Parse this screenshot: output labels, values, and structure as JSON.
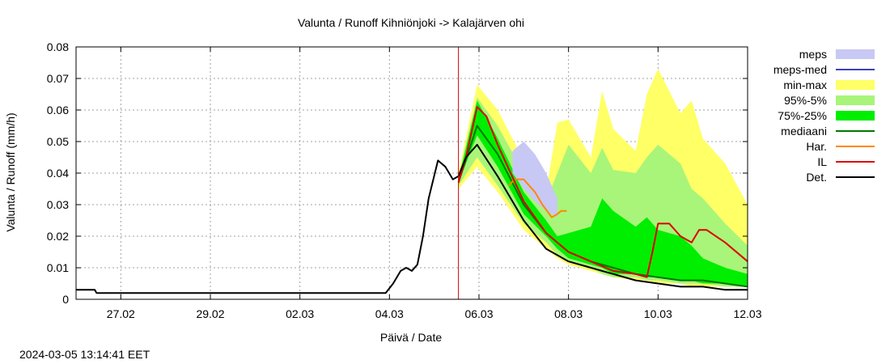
{
  "chart_data": {
    "type": "area",
    "title": "Valunta / Runoff  Kihniönjoki -> Kalajärven ohi",
    "xlabel": "Päivä / Date",
    "ylabel": "Valunta / Runoff (mm/h)",
    "ylim": [
      0,
      0.08
    ],
    "xlim": [
      "2024-02-26 00:00",
      "2024-03-12 00:00"
    ],
    "grid": true,
    "legend_position": "right",
    "yticks": [
      "0",
      "0.01",
      "0.02",
      "0.03",
      "0.04",
      "0.05",
      "0.06",
      "0.07",
      "0.08"
    ],
    "xticks": [
      {
        "label": "27.02",
        "date": "2024-02-27"
      },
      {
        "label": "29.02",
        "date": "2024-02-29"
      },
      {
        "label": "02.03",
        "date": "2024-03-02"
      },
      {
        "label": "04.03",
        "date": "2024-03-04"
      },
      {
        "label": "06.03",
        "date": "2024-03-06"
      },
      {
        "label": "08.03",
        "date": "2024-03-08"
      },
      {
        "label": "10.03",
        "date": "2024-03-10"
      },
      {
        "label": "12.03",
        "date": "2024-03-12"
      }
    ],
    "forecast_start": "2024-03-05 13:00",
    "legend": [
      {
        "label": "meps",
        "kind": "box",
        "color": "#c8c8f4"
      },
      {
        "label": "meps-med",
        "kind": "line",
        "color": "#4040c0"
      },
      {
        "label": "min-max",
        "kind": "box",
        "color": "#ffff66"
      },
      {
        "label": "95%-5%",
        "kind": "box",
        "color": "#a8f57a"
      },
      {
        "label": "75%-25%",
        "kind": "box",
        "color": "#00ee00"
      },
      {
        "label": "mediaani",
        "kind": "line",
        "color": "#007700"
      },
      {
        "label": "Har.",
        "kind": "line",
        "color": "#ff8800"
      },
      {
        "label": "IL",
        "kind": "line",
        "color": "#dd0000"
      },
      {
        "label": "Det.",
        "kind": "line",
        "color": "#000000"
      }
    ],
    "series": [
      {
        "name": "min-max",
        "kind": "band",
        "color": "#ffff66",
        "x": [
          "2024-03-05 13:00",
          "2024-03-05 23:00",
          "2024-03-06 10:00",
          "2024-03-07 00:00",
          "2024-03-07 12:00",
          "2024-03-07 18:00",
          "2024-03-08 00:00",
          "2024-03-08 12:00",
          "2024-03-08 18:00",
          "2024-03-09 00:00",
          "2024-03-09 12:00",
          "2024-03-09 18:00",
          "2024-03-10 00:00",
          "2024-03-10 12:00",
          "2024-03-10 18:00",
          "2024-03-11 00:00",
          "2024-03-11 12:00",
          "2024-03-12 00:00"
        ],
        "low": [
          0.035,
          0.042,
          0.034,
          0.022,
          0.016,
          0.013,
          0.011,
          0.009,
          0.008,
          0.007,
          0.006,
          0.006,
          0.005,
          0.005,
          0.004,
          0.004,
          0.004,
          0.004
        ],
        "high": [
          0.04,
          0.068,
          0.06,
          0.044,
          0.034,
          0.056,
          0.057,
          0.045,
          0.066,
          0.054,
          0.047,
          0.065,
          0.073,
          0.059,
          0.063,
          0.051,
          0.043,
          0.03
        ]
      },
      {
        "name": "95%-5%",
        "kind": "band",
        "color": "#a8f57a",
        "x": [
          "2024-03-05 13:00",
          "2024-03-05 23:00",
          "2024-03-06 10:00",
          "2024-03-07 00:00",
          "2024-03-07 12:00",
          "2024-03-07 18:00",
          "2024-03-08 00:00",
          "2024-03-08 12:00",
          "2024-03-08 18:00",
          "2024-03-09 00:00",
          "2024-03-09 12:00",
          "2024-03-09 18:00",
          "2024-03-10 00:00",
          "2024-03-10 12:00",
          "2024-03-10 18:00",
          "2024-03-11 00:00",
          "2024-03-11 12:00",
          "2024-03-12 00:00"
        ],
        "low": [
          0.036,
          0.045,
          0.036,
          0.024,
          0.018,
          0.014,
          0.012,
          0.01,
          0.008,
          0.007,
          0.007,
          0.006,
          0.006,
          0.005,
          0.005,
          0.005,
          0.004,
          0.004
        ],
        "high": [
          0.039,
          0.064,
          0.055,
          0.04,
          0.031,
          0.04,
          0.049,
          0.04,
          0.048,
          0.041,
          0.04,
          0.045,
          0.049,
          0.043,
          0.035,
          0.032,
          0.024,
          0.017
        ]
      },
      {
        "name": "75%-25%",
        "kind": "band",
        "color": "#00ee00",
        "x": [
          "2024-03-05 13:00",
          "2024-03-05 23:00",
          "2024-03-06 10:00",
          "2024-03-07 00:00",
          "2024-03-07 12:00",
          "2024-03-07 18:00",
          "2024-03-08 00:00",
          "2024-03-08 12:00",
          "2024-03-08 18:00",
          "2024-03-09 00:00",
          "2024-03-09 12:00",
          "2024-03-09 18:00",
          "2024-03-10 00:00",
          "2024-03-10 12:00",
          "2024-03-10 18:00",
          "2024-03-11 00:00",
          "2024-03-11 12:00",
          "2024-03-12 00:00"
        ],
        "low": [
          0.037,
          0.052,
          0.042,
          0.027,
          0.02,
          0.016,
          0.013,
          0.011,
          0.01,
          0.008,
          0.008,
          0.007,
          0.007,
          0.006,
          0.006,
          0.005,
          0.005,
          0.004
        ],
        "high": [
          0.038,
          0.063,
          0.051,
          0.034,
          0.025,
          0.02,
          0.021,
          0.023,
          0.032,
          0.028,
          0.023,
          0.026,
          0.022,
          0.02,
          0.017,
          0.013,
          0.01,
          0.008
        ]
      },
      {
        "name": "meps",
        "kind": "band",
        "color": "#c8c8f4",
        "x": [
          "2024-03-06 18:00",
          "2024-03-07 00:00",
          "2024-03-07 06:00",
          "2024-03-07 12:00",
          "2024-03-07 18:00"
        ],
        "low": [
          0.04,
          0.035,
          0.031,
          0.028,
          0.026
        ],
        "high": [
          0.047,
          0.05,
          0.046,
          0.04,
          0.032
        ]
      },
      {
        "name": "mediaani",
        "kind": "line",
        "color": "#007700",
        "x": [
          "2024-03-05 13:00",
          "2024-03-05 23:00",
          "2024-03-06 10:00",
          "2024-03-07 00:00",
          "2024-03-07 12:00",
          "2024-03-08 00:00",
          "2024-03-08 12:00",
          "2024-03-09 00:00",
          "2024-03-09 12:00",
          "2024-03-10 00:00",
          "2024-03-10 12:00",
          "2024-03-11 00:00",
          "2024-03-11 12:00",
          "2024-03-12 00:00"
        ],
        "y": [
          0.037,
          0.055,
          0.046,
          0.03,
          0.021,
          0.015,
          0.012,
          0.01,
          0.008,
          0.007,
          0.006,
          0.006,
          0.005,
          0.004
        ]
      },
      {
        "name": "Har.",
        "kind": "line",
        "color": "#ff8800",
        "x": [
          "2024-03-06 16:00",
          "2024-03-06 19:00",
          "2024-03-07 00:00",
          "2024-03-07 06:00",
          "2024-03-07 10:00",
          "2024-03-07 15:00",
          "2024-03-07 18:00",
          "2024-03-07 20:00",
          "2024-03-07 23:00"
        ],
        "y": [
          0.036,
          0.038,
          0.038,
          0.034,
          0.03,
          0.026,
          0.027,
          0.028,
          0.028
        ]
      },
      {
        "name": "IL",
        "kind": "line",
        "color": "#dd0000",
        "x": [
          "2024-03-05 13:00",
          "2024-03-05 17:00",
          "2024-03-05 23:00",
          "2024-03-06 04:00",
          "2024-03-06 10:00",
          "2024-03-07 00:00",
          "2024-03-07 12:00",
          "2024-03-08 00:00",
          "2024-03-08 12:00",
          "2024-03-09 00:00",
          "2024-03-09 12:00",
          "2024-03-09 18:00",
          "2024-03-09 21:00",
          "2024-03-10 00:00",
          "2024-03-10 06:00",
          "2024-03-10 12:00",
          "2024-03-10 18:00",
          "2024-03-10 22:00",
          "2024-03-11 02:00",
          "2024-03-11 12:00",
          "2024-03-12 00:00"
        ],
        "y": [
          0.037,
          0.045,
          0.061,
          0.058,
          0.049,
          0.031,
          0.021,
          0.015,
          0.012,
          0.009,
          0.008,
          0.007,
          0.015,
          0.024,
          0.024,
          0.02,
          0.018,
          0.022,
          0.022,
          0.018,
          0.012
        ]
      },
      {
        "name": "Det.",
        "kind": "line",
        "color": "#000000",
        "x": [
          "2024-02-26 00:00",
          "2024-02-26 10:00",
          "2024-02-26 11:00",
          "2024-03-03 22:00",
          "2024-03-04 02:00",
          "2024-03-04 06:00",
          "2024-03-04 09:00",
          "2024-03-04 12:00",
          "2024-03-04 15:00",
          "2024-03-04 18:00",
          "2024-03-04 21:00",
          "2024-03-05 02:00",
          "2024-03-05 06:00",
          "2024-03-05 10:00",
          "2024-03-05 13:00",
          "2024-03-05 17:00",
          "2024-03-05 23:00",
          "2024-03-06 10:00",
          "2024-03-07 00:00",
          "2024-03-07 12:00",
          "2024-03-08 00:00",
          "2024-03-08 12:00",
          "2024-03-09 00:00",
          "2024-03-09 12:00",
          "2024-03-10 00:00",
          "2024-03-10 12:00",
          "2024-03-11 00:00",
          "2024-03-11 12:00",
          "2024-03-12 00:00"
        ],
        "y": [
          0.003,
          0.003,
          0.002,
          0.002,
          0.005,
          0.009,
          0.01,
          0.009,
          0.011,
          0.02,
          0.032,
          0.044,
          0.042,
          0.038,
          0.039,
          0.045,
          0.049,
          0.039,
          0.025,
          0.016,
          0.012,
          0.01,
          0.008,
          0.006,
          0.005,
          0.004,
          0.004,
          0.003,
          0.003
        ]
      }
    ]
  },
  "timestamp": "2024-03-05 13:14:41 EET"
}
